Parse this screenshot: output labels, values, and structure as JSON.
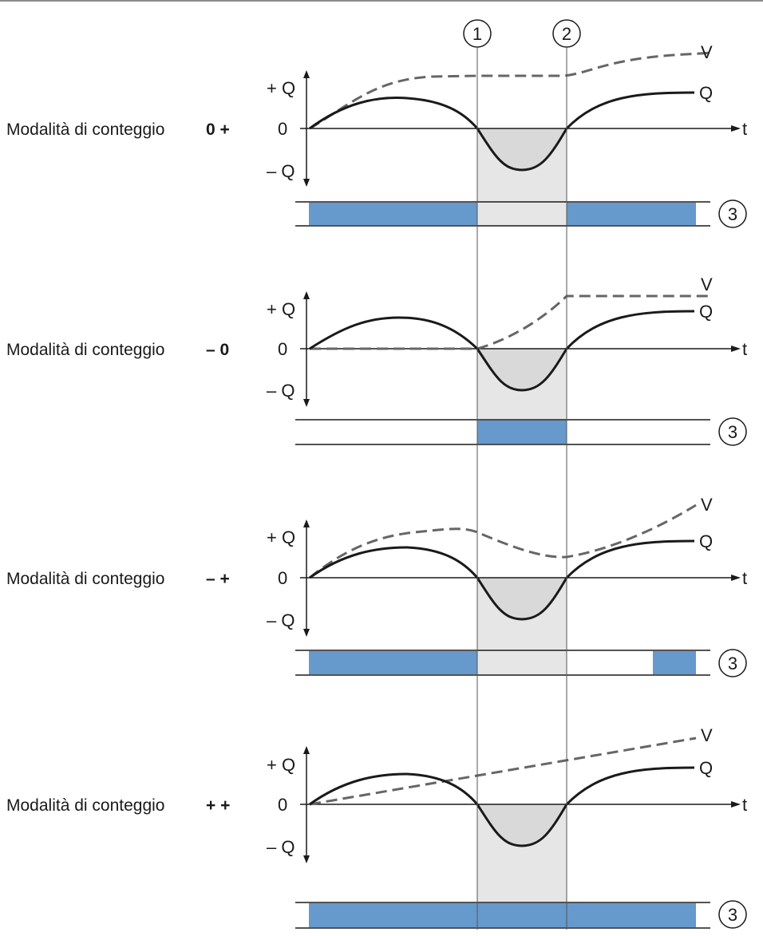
{
  "colors": {
    "bar": "#6699cc",
    "shade": "#e6e6e6",
    "q_curve": "#1a1a1a",
    "v_curve": "#666666",
    "line": "#1a1a1a",
    "top_rule": "#8c8c8c"
  },
  "markers": [
    {
      "label": "1"
    },
    {
      "label": "2"
    }
  ],
  "axis_labels": {
    "plus_q": "+ Q",
    "zero": "0",
    "minus_q": "– Q",
    "t": "t",
    "v": "V",
    "q": "Q"
  },
  "output_marker": "3",
  "panels": [
    {
      "label": "Modalità di conteggio",
      "mode": "0 +"
    },
    {
      "label": "Modalità di conteggio",
      "mode": "– 0"
    },
    {
      "label": "Modalità di conteggio",
      "mode": "– +"
    },
    {
      "label": "Modalità di conteggio",
      "mode": "+ +"
    }
  ]
}
